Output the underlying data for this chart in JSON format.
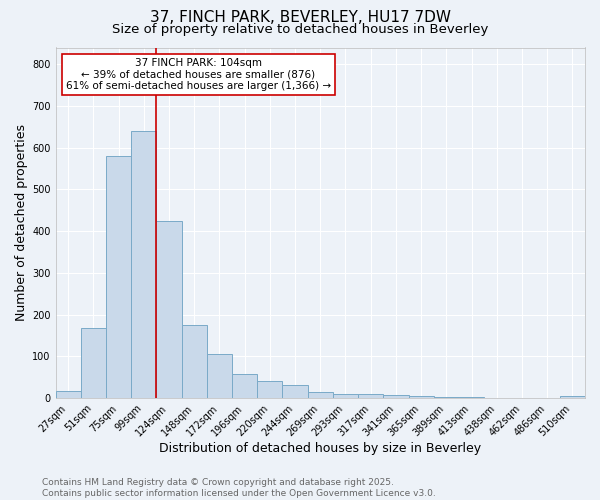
{
  "title1": "37, FINCH PARK, BEVERLEY, HU17 7DW",
  "title2": "Size of property relative to detached houses in Beverley",
  "xlabel": "Distribution of detached houses by size in Beverley",
  "ylabel": "Number of detached properties",
  "categories": [
    "27sqm",
    "51sqm",
    "75sqm",
    "99sqm",
    "124sqm",
    "148sqm",
    "172sqm",
    "196sqm",
    "220sqm",
    "244sqm",
    "269sqm",
    "293sqm",
    "317sqm",
    "341sqm",
    "365sqm",
    "389sqm",
    "413sqm",
    "438sqm",
    "462sqm",
    "486sqm",
    "510sqm"
  ],
  "values": [
    18,
    168,
    580,
    640,
    425,
    175,
    105,
    57,
    40,
    32,
    15,
    10,
    9,
    8,
    5,
    3,
    2,
    1,
    1,
    0,
    5
  ],
  "bar_color": "#c9d9ea",
  "bar_edge_color": "#7aaac8",
  "ylim": [
    0,
    840
  ],
  "yticks": [
    0,
    100,
    200,
    300,
    400,
    500,
    600,
    700,
    800
  ],
  "vline_x": 3.5,
  "vline_color": "#cc0000",
  "annotation_text": "37 FINCH PARK: 104sqm\n← 39% of detached houses are smaller (876)\n61% of semi-detached houses are larger (1,366) →",
  "annotation_box_color": "#ffffff",
  "annotation_box_edge": "#cc0000",
  "footnote1": "Contains HM Land Registry data © Crown copyright and database right 2025.",
  "footnote2": "Contains public sector information licensed under the Open Government Licence v3.0.",
  "background_color": "#edf2f8",
  "plot_bg_color": "#edf2f8",
  "grid_color": "#ffffff",
  "title_fontsize": 11,
  "subtitle_fontsize": 9.5,
  "axis_label_fontsize": 9,
  "tick_fontsize": 7,
  "annotation_fontsize": 7.5,
  "footnote_fontsize": 6.5
}
